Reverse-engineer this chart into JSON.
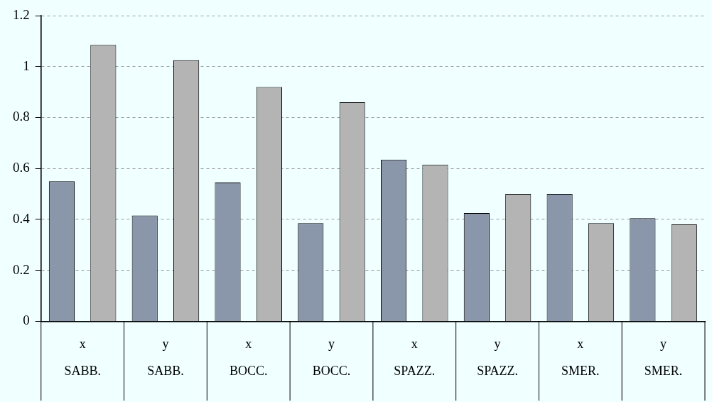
{
  "chart_data": {
    "type": "bar",
    "categories": [
      "x\nSABB.",
      "y\nSABB.",
      "x\nBOCC.",
      "y\nBOCC.",
      "x\nSPAZZ.",
      "y\nSPAZZ.",
      "x\nSMER.",
      "y\nSMER."
    ],
    "series": [
      {
        "color": "#8a96aa",
        "values": [
          0.55,
          0.415,
          0.545,
          0.385,
          0.635,
          0.425,
          0.5,
          0.405
        ]
      },
      {
        "color": "#b4b4b4",
        "values": [
          1.085,
          1.025,
          0.92,
          0.86,
          0.615,
          0.5,
          0.385,
          0.38
        ]
      }
    ],
    "ylim": [
      0,
      1.2
    ],
    "yticks": [
      0,
      0.2,
      0.4,
      0.6,
      0.8,
      1,
      1.2
    ],
    "grid": "y",
    "legend": false
  }
}
